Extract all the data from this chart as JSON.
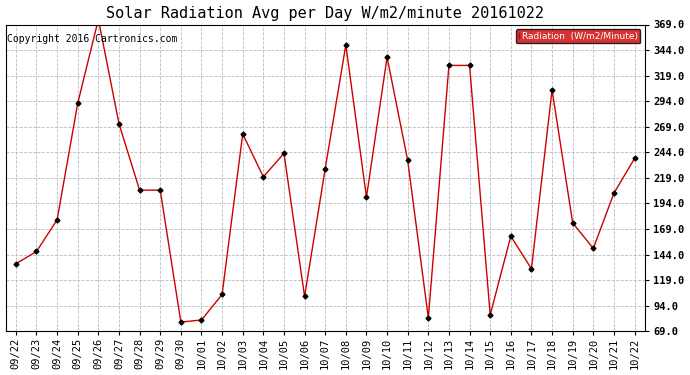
{
  "title": "Solar Radiation Avg per Day W/m2/minute 20161022",
  "copyright": "Copyright 2016 Cartronics.com",
  "legend_label": "Radiation  (W/m2/Minute)",
  "background_color": "#ffffff",
  "plot_bg_color": "#ffffff",
  "grid_color": "#bbbbbb",
  "line_color": "#cc0000",
  "marker_color": "#000000",
  "legend_bg": "#cc0000",
  "legend_text_color": "#ffffff",
  "ylim": [
    69.0,
    369.0
  ],
  "yticks": [
    69.0,
    94.0,
    119.0,
    144.0,
    169.0,
    194.0,
    219.0,
    244.0,
    269.0,
    294.0,
    319.0,
    344.0,
    369.0
  ],
  "dates": [
    "09/22",
    "09/23",
    "09/24",
    "09/25",
    "09/26",
    "09/27",
    "09/28",
    "09/29",
    "09/30",
    "10/01",
    "10/02",
    "10/03",
    "10/04",
    "10/05",
    "10/06",
    "10/07",
    "10/08",
    "10/09",
    "10/10",
    "10/11",
    "10/12",
    "10/13",
    "10/14",
    "10/15",
    "10/16",
    "10/17",
    "10/18",
    "10/19",
    "10/20",
    "10/21",
    "10/22"
  ],
  "values": [
    135,
    147,
    178,
    292,
    374,
    272,
    207,
    207,
    78,
    80,
    105,
    262,
    220,
    243,
    103,
    228,
    349,
    200,
    337,
    236,
    82,
    329,
    329,
    85,
    162,
    130,
    305,
    175,
    150,
    204,
    238
  ],
  "title_fontsize": 11,
  "tick_fontsize": 7.5,
  "copyright_fontsize": 7
}
